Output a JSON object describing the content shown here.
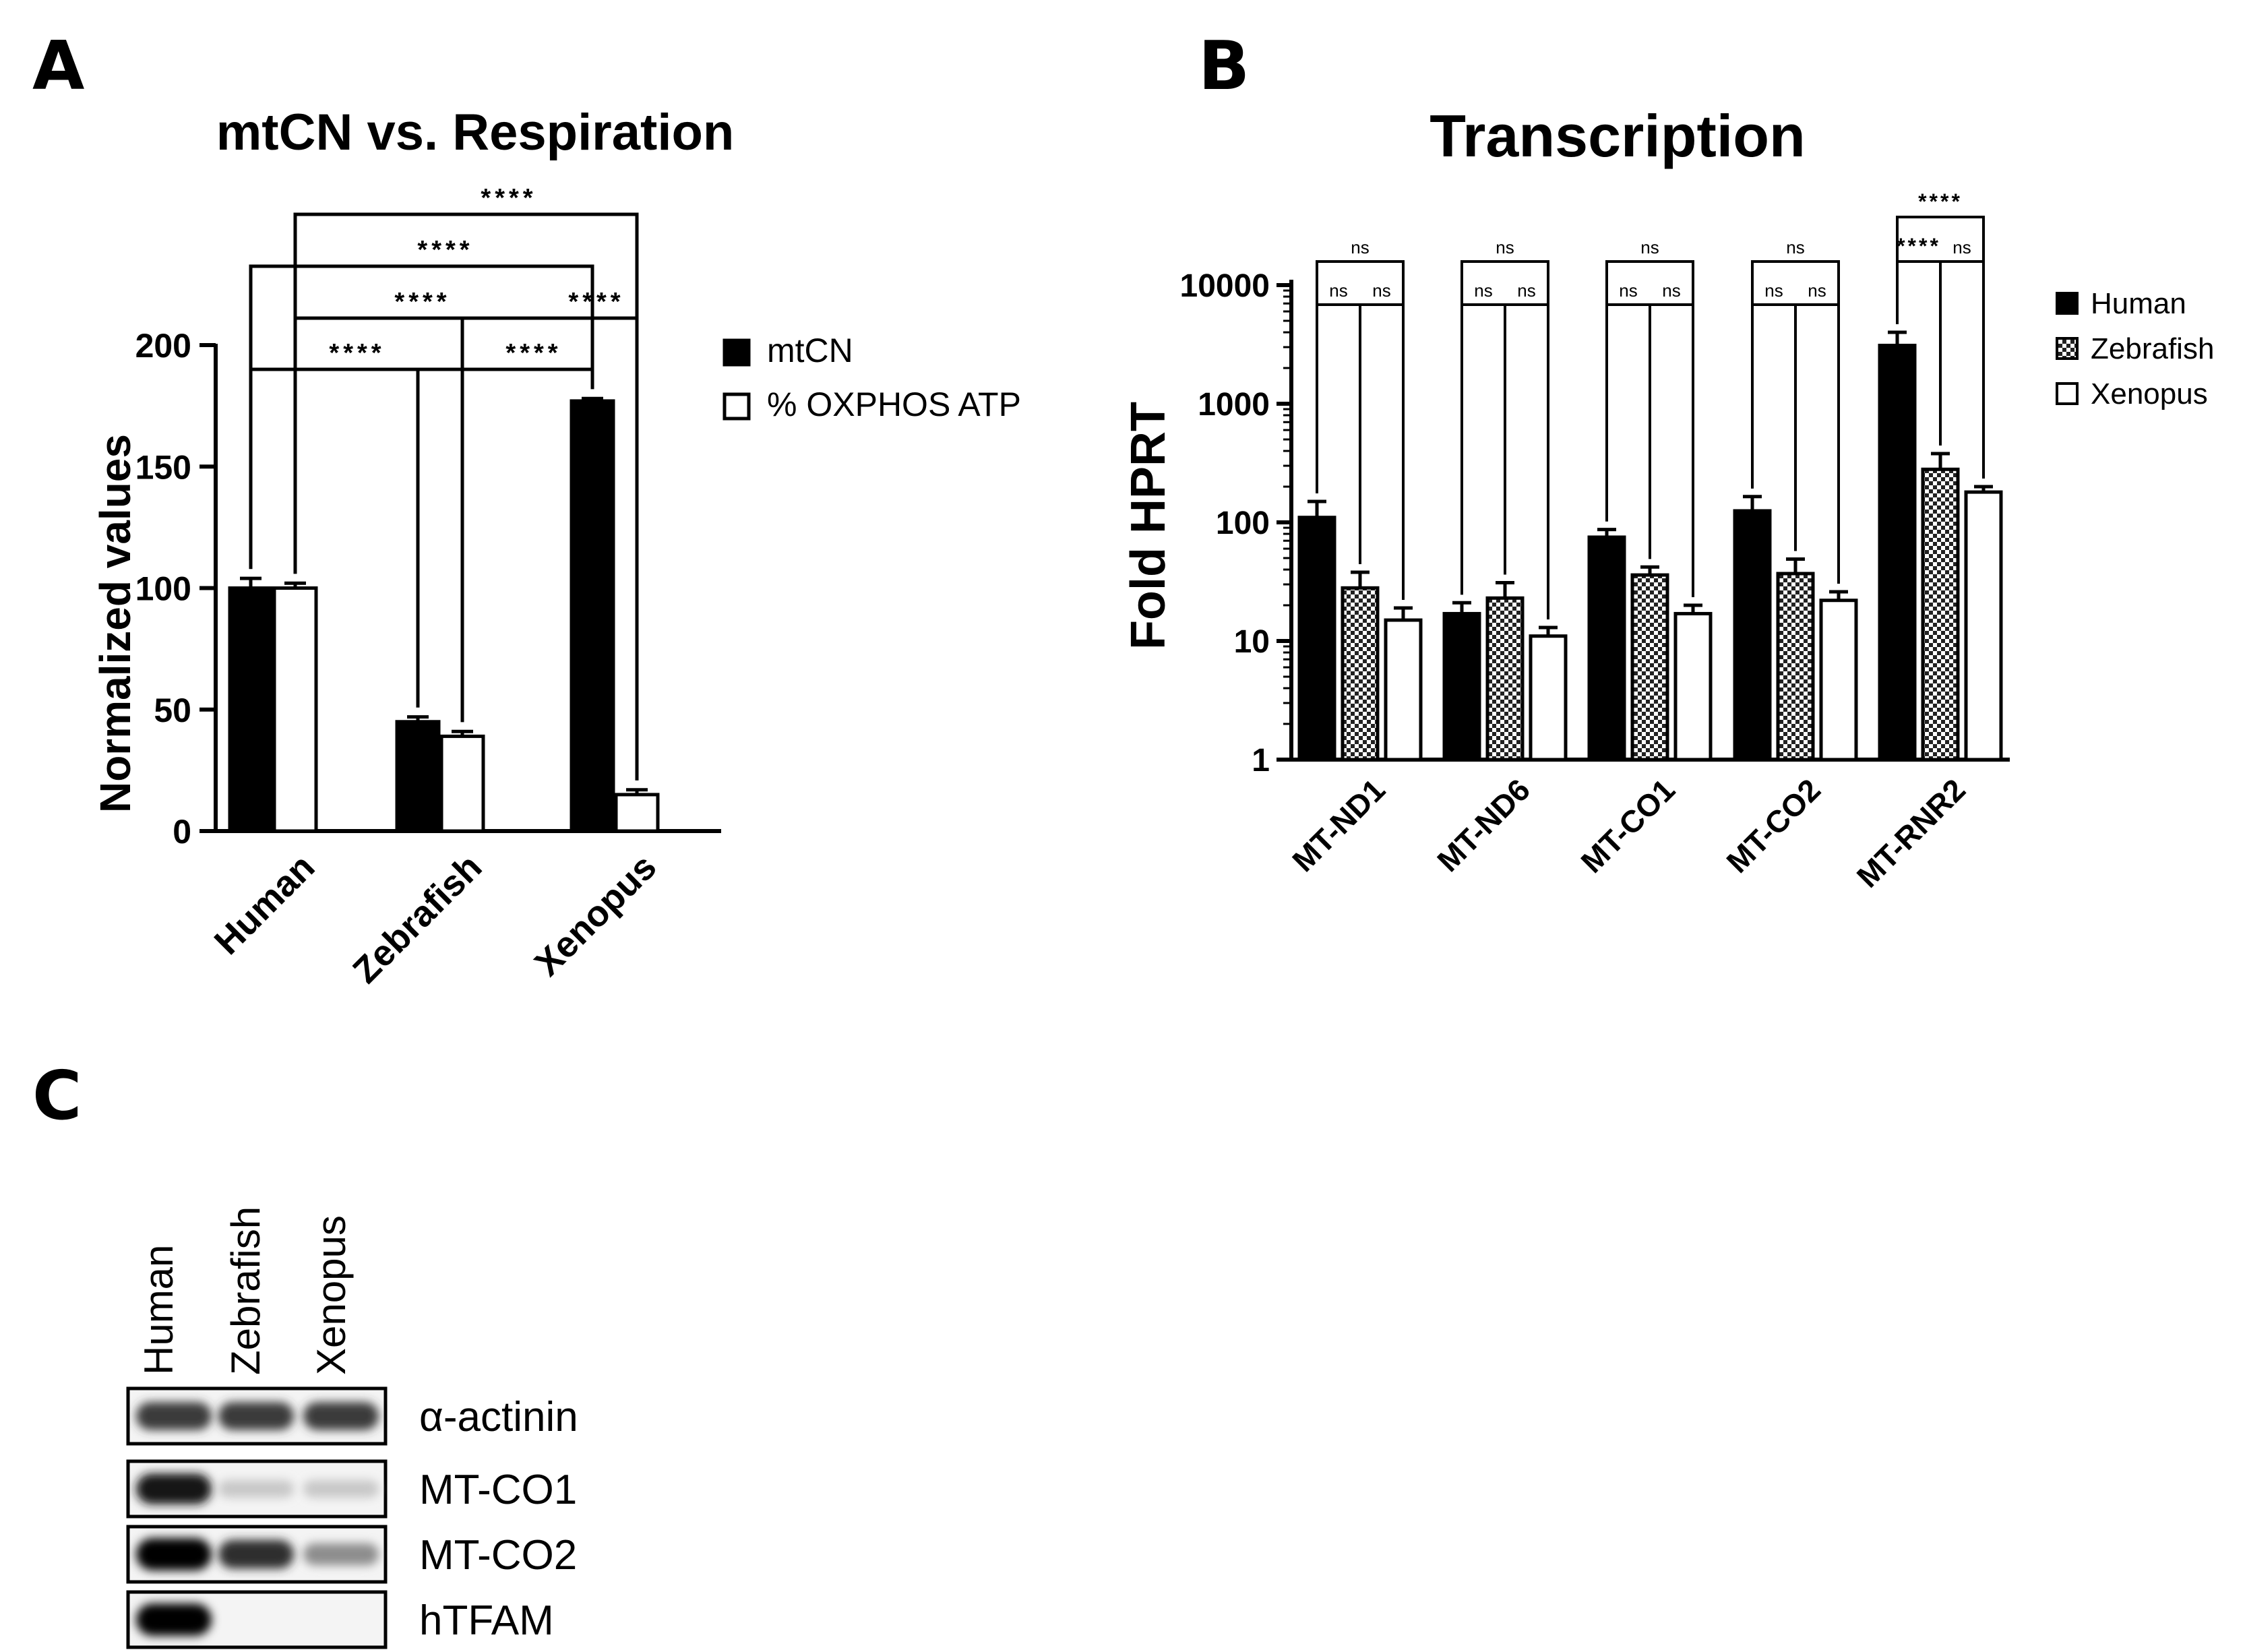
{
  "panels": {
    "a": "A",
    "b": "B",
    "c": "C"
  },
  "chart_data": [
    {
      "id": "panelA",
      "type": "bar",
      "title": "mtCN vs. Respiration",
      "ylabel": "Normalized values",
      "xlabel": "",
      "ylim": [
        0,
        200
      ],
      "yticks": [
        0,
        50,
        100,
        150,
        200
      ],
      "ytick_labels": [
        "0",
        "50",
        "100",
        "150",
        "200"
      ],
      "categories": [
        "Human",
        "Zebrafish",
        "Xenopus"
      ],
      "series": [
        {
          "name": "mtCN",
          "fill": "#000000",
          "values": [
            100,
            45,
            177
          ],
          "errors": [
            4,
            2,
            1
          ]
        },
        {
          "name": "% OXPHOS ATP",
          "fill": "#ffffff",
          "values": [
            100,
            39,
            15
          ],
          "errors": [
            2,
            2,
            2
          ]
        }
      ],
      "legend": {
        "position": "right",
        "entries": [
          "mtCN",
          "% OXPHOS ATP"
        ]
      },
      "significance": [
        {
          "from": [
            0,
            0
          ],
          "to": [
            1,
            0
          ],
          "label": "****"
        },
        {
          "from": [
            1,
            0
          ],
          "to": [
            2,
            0
          ],
          "label": "****"
        },
        {
          "from": [
            0,
            1
          ],
          "to": [
            1,
            1
          ],
          "label": "****"
        },
        {
          "from": [
            1,
            1
          ],
          "to": [
            2,
            1
          ],
          "label": "****"
        },
        {
          "from": [
            0,
            0
          ],
          "to": [
            2,
            0
          ],
          "label": "****"
        },
        {
          "from": [
            0,
            1
          ],
          "to": [
            2,
            1
          ],
          "label": "****"
        }
      ],
      "grid": false
    },
    {
      "id": "panelB",
      "type": "bar",
      "title": "Transcription",
      "ylabel": "Fold HPRT",
      "xlabel": "",
      "yscale": "log",
      "ylim": [
        1,
        10000
      ],
      "yticks": [
        1,
        10,
        100,
        1000,
        10000
      ],
      "ytick_labels": [
        "1",
        "10",
        "100",
        "1000",
        "10000"
      ],
      "categories": [
        "MT-ND1",
        "MT-ND6",
        "MT-CO1",
        "MT-CO2",
        "MT-RNR2"
      ],
      "series": [
        {
          "name": "Human",
          "fill": "solid",
          "values": [
            110,
            17,
            75,
            125,
            3100
          ],
          "errors": [
            40,
            4,
            12,
            40,
            900
          ]
        },
        {
          "name": "Zebrafish",
          "fill": "checker",
          "values": [
            28,
            23,
            36,
            37,
            280
          ],
          "errors": [
            10,
            8,
            6,
            12,
            100
          ]
        },
        {
          "name": "Xenopus",
          "fill": "white",
          "values": [
            15,
            11,
            17,
            22,
            180
          ],
          "errors": [
            4,
            2,
            3,
            4,
            20
          ]
        }
      ],
      "legend": {
        "position": "top-right",
        "entries": [
          "Human",
          "Zebrafish",
          "Xenopus"
        ]
      },
      "significance": [
        {
          "group": 0,
          "from": 0,
          "to": 1,
          "label": "ns"
        },
        {
          "group": 0,
          "from": 1,
          "to": 2,
          "label": "ns"
        },
        {
          "group": 0,
          "from": 0,
          "to": 2,
          "label": "ns"
        },
        {
          "group": 1,
          "from": 0,
          "to": 1,
          "label": "ns"
        },
        {
          "group": 1,
          "from": 1,
          "to": 2,
          "label": "ns"
        },
        {
          "group": 1,
          "from": 0,
          "to": 2,
          "label": "ns"
        },
        {
          "group": 2,
          "from": 0,
          "to": 1,
          "label": "ns"
        },
        {
          "group": 2,
          "from": 1,
          "to": 2,
          "label": "ns"
        },
        {
          "group": 2,
          "from": 0,
          "to": 2,
          "label": "ns"
        },
        {
          "group": 3,
          "from": 0,
          "to": 1,
          "label": "ns"
        },
        {
          "group": 3,
          "from": 1,
          "to": 2,
          "label": "ns"
        },
        {
          "group": 3,
          "from": 0,
          "to": 2,
          "label": "ns"
        },
        {
          "group": 4,
          "from": 0,
          "to": 1,
          "label": "****"
        },
        {
          "group": 4,
          "from": 1,
          "to": 2,
          "label": "ns"
        },
        {
          "group": 4,
          "from": 0,
          "to": 2,
          "label": "****"
        }
      ],
      "grid": false
    }
  ],
  "western_blot": {
    "lanes": [
      "Human",
      "Zebrafish",
      "Xenopus"
    ],
    "rows": [
      {
        "label": "α-actinin",
        "intensities": [
          0.75,
          0.75,
          0.75
        ]
      },
      {
        "label": "MT-CO1",
        "intensities": [
          0.9,
          0.15,
          0.15
        ]
      },
      {
        "label": "MT-CO2",
        "intensities": [
          1.0,
          0.8,
          0.4
        ]
      },
      {
        "label": "hTFAM",
        "intensities": [
          1.0,
          0.0,
          0.0
        ]
      }
    ]
  }
}
